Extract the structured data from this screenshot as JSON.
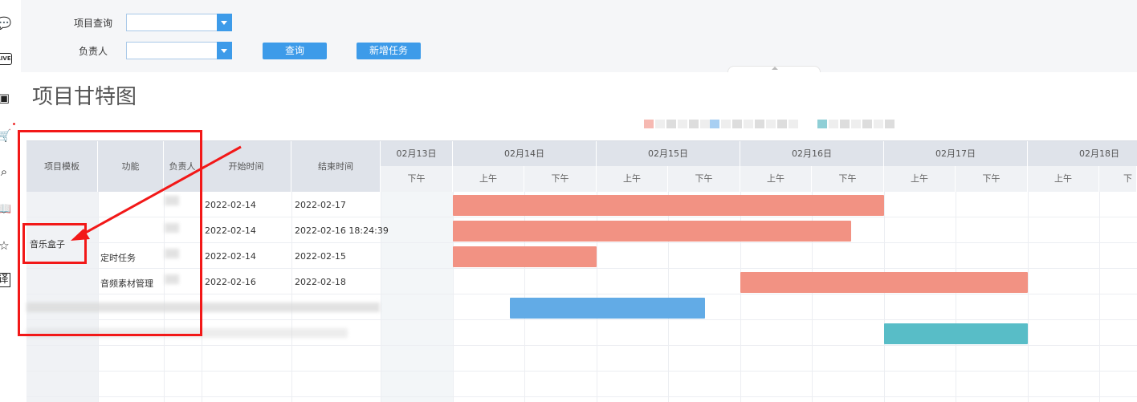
{
  "left_rail": {
    "icons": [
      "comment-icon",
      "live-icon",
      "video-icon",
      "cart-icon",
      "search-icon",
      "book-icon",
      "star-icon",
      "translate-icon"
    ],
    "live_text": "LIVE",
    "translate_glyph": "译"
  },
  "filter": {
    "project_label": "项目查询",
    "owner_label": "负责人",
    "project_value": "",
    "owner_value": "",
    "query_button": "查询",
    "new_task_button": "新增任务"
  },
  "page_title": "项目甘特图",
  "legend": {
    "colors": [
      "#f6b9b2",
      "#a8cff2",
      "#8fcfd6"
    ]
  },
  "table": {
    "headers": [
      "项目模板",
      "功能",
      "负责人",
      "开始时间",
      "结束时间"
    ],
    "template_name": "音乐盒子",
    "rows": [
      {
        "feature": "",
        "owner": "",
        "start": "2022-02-14",
        "end": "2022-02-17"
      },
      {
        "feature": "",
        "owner": "",
        "start": "2022-02-14",
        "end": "2022-02-16 18:24:39"
      },
      {
        "feature": "定时任务",
        "owner": "",
        "start": "2022-02-14",
        "end": "2022-02-15"
      },
      {
        "feature": "音频素材管理",
        "owner": "",
        "start": "2022-02-16",
        "end": "2022-02-18"
      },
      {
        "feature": "",
        "owner": "",
        "start": "",
        "end": ""
      },
      {
        "feature": "",
        "owner": "",
        "start": "",
        "end": ""
      }
    ]
  },
  "gantt": {
    "days": [
      "02月13日",
      "02月14日",
      "02月15日",
      "02月16日",
      "02月17日",
      "02月18日"
    ],
    "half_labels": [
      "下午",
      "上午",
      "下午",
      "上午",
      "下午",
      "上午",
      "下午",
      "上午",
      "下午",
      "上午",
      "下"
    ],
    "bars": [
      {
        "start": "2022-02-14",
        "end": "2022-02-17",
        "color": "#f29283"
      },
      {
        "start": "2022-02-14",
        "end": "2022-02-16 18:24:39",
        "color": "#f29283"
      },
      {
        "start": "2022-02-14",
        "end": "2022-02-15",
        "color": "#f29283"
      },
      {
        "start": "2022-02-16",
        "end": "2022-02-18",
        "color": "#f29283"
      },
      {
        "start": "2022-02-14 12:00",
        "end": "2022-02-15 12:00",
        "color": "#62abe6"
      },
      {
        "start": "2022-02-17",
        "end": "2022-02-18",
        "color": "#58bdc7"
      }
    ]
  }
}
